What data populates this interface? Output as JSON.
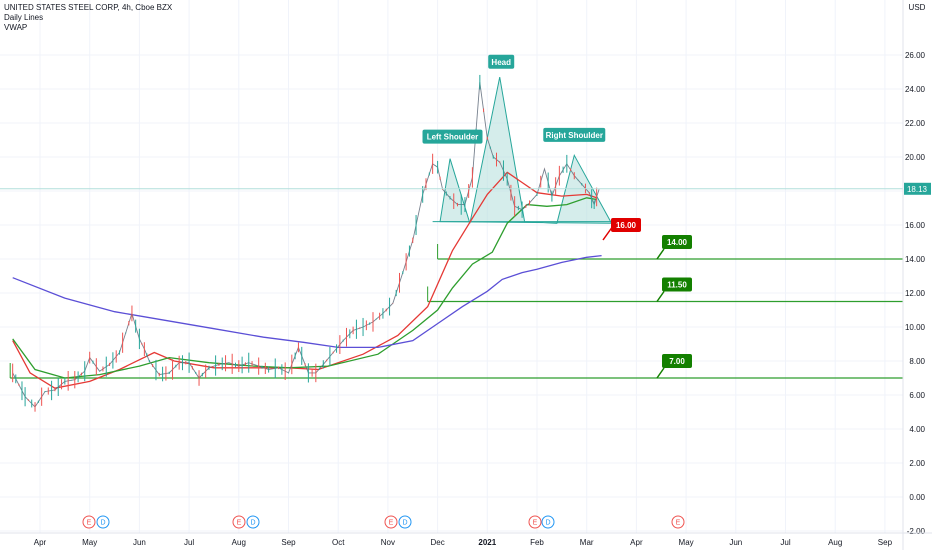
{
  "header": {
    "symbol": "UNITED STATES STEEL CORP, 4h, Cboe BZX",
    "indicator_1": "Daily Lines",
    "indicator_2": "VWAP"
  },
  "currency": "USD",
  "colors": {
    "up": "#26a69a",
    "down": "#ef5350",
    "ma_fast": "#e53935",
    "ma_mid": "#2e9e2e",
    "vwap": "#5b4fd6",
    "pattern_fill": "#b2dfdb",
    "pattern_line": "#26a69a",
    "level_line": "#2e9e2e",
    "label_green": "#138000",
    "label_red": "#e00000",
    "teal_label": "#26a69a"
  },
  "chart_data": {
    "type": "line",
    "title": "UNITED STATES STEEL CORP, 4h, Cboe BZX",
    "x_months": [
      "Apr",
      "May",
      "Jun",
      "Jul",
      "Aug",
      "Sep",
      "Oct",
      "Nov",
      "Dec",
      "2021",
      "Feb",
      "Mar",
      "Apr",
      "May",
      "Jun",
      "Jul",
      "Aug",
      "Sep"
    ],
    "y_ticks": [
      "-2.00",
      "0.00",
      "2.00",
      "4.00",
      "6.00",
      "8.00",
      "10.00",
      "12.00",
      "14.00",
      "16.00",
      "18.00",
      "20.00",
      "22.00",
      "24.00",
      "26.00"
    ],
    "ylim": [
      -2.4,
      27.4
    ],
    "xlim_months": [
      -0.3,
      17.4
    ],
    "current_price": "18.13",
    "price_series": {
      "name": "Price",
      "x": [
        -0.55,
        -0.3,
        -0.1,
        0.1,
        0.3,
        0.5,
        0.7,
        0.9,
        1.0,
        1.2,
        1.4,
        1.6,
        1.85,
        2.0,
        2.1,
        2.2,
        2.4,
        2.6,
        2.8,
        3.0,
        3.2,
        3.4,
        3.6,
        3.8,
        4.0,
        4.2,
        4.4,
        4.6,
        4.8,
        5.0,
        5.2,
        5.4,
        5.55,
        5.7,
        5.9,
        6.1,
        6.3,
        6.5,
        6.7,
        6.9,
        7.1,
        7.3,
        7.5,
        7.7,
        7.9,
        8.0,
        8.1,
        8.25,
        8.4,
        8.55,
        8.7,
        8.85,
        9.0,
        9.12,
        9.25,
        9.4,
        9.55,
        9.7,
        9.85,
        10.0,
        10.15,
        10.3,
        10.45,
        10.6,
        10.75,
        10.9,
        11.05,
        11.15,
        11.25
      ],
      "values": [
        7.3,
        5.9,
        5.3,
        6.2,
        6.3,
        6.8,
        6.9,
        7.4,
        8.2,
        7.4,
        7.8,
        8.5,
        10.8,
        9.3,
        8.7,
        8.0,
        7.2,
        7.3,
        7.9,
        7.9,
        7.0,
        7.6,
        7.8,
        7.9,
        7.7,
        7.9,
        7.7,
        7.5,
        7.6,
        7.3,
        8.8,
        7.3,
        7.3,
        7.8,
        8.5,
        9.2,
        9.8,
        10.0,
        10.3,
        10.8,
        11.4,
        13.2,
        15.1,
        17.8,
        19.6,
        19.4,
        18.1,
        17.6,
        17.2,
        17.2,
        18.8,
        24.4,
        21.1,
        20.0,
        19.7,
        18.7,
        17.1,
        16.9,
        17.3,
        17.8,
        19.3,
        17.7,
        18.9,
        19.6,
        18.9,
        18.4,
        17.9,
        17.2,
        18.1
      ]
    },
    "series": [
      {
        "values": [
          [
            -0.55,
            9.2
          ],
          [
            -0.2,
            7.3
          ],
          [
            0.3,
            6.4
          ],
          [
            1.0,
            6.8
          ],
          [
            1.6,
            7.5
          ],
          [
            2.3,
            8.5
          ],
          [
            2.7,
            8.0
          ],
          [
            3.5,
            7.6
          ],
          [
            4.2,
            7.6
          ],
          [
            5.0,
            7.6
          ],
          [
            5.6,
            7.5
          ],
          [
            6.5,
            8.4
          ],
          [
            7.2,
            9.5
          ],
          [
            7.8,
            11.2
          ],
          [
            8.3,
            14.5
          ],
          [
            8.7,
            16.4
          ],
          [
            9.0,
            17.8
          ],
          [
            9.4,
            19.1
          ],
          [
            9.7,
            18.5
          ],
          [
            10.0,
            17.9
          ],
          [
            10.5,
            17.7
          ],
          [
            11.0,
            17.8
          ],
          [
            11.2,
            17.6
          ]
        ]
      },
      {
        "values": [
          [
            -0.55,
            9.3
          ],
          [
            -0.1,
            7.5
          ],
          [
            0.5,
            7.0
          ],
          [
            1.2,
            7.2
          ],
          [
            2.0,
            7.7
          ],
          [
            2.6,
            8.2
          ],
          [
            3.4,
            7.9
          ],
          [
            4.3,
            7.7
          ],
          [
            5.0,
            7.6
          ],
          [
            5.8,
            7.7
          ],
          [
            6.8,
            8.4
          ],
          [
            7.5,
            9.8
          ],
          [
            8.0,
            11.0
          ],
          [
            8.3,
            12.3
          ],
          [
            8.7,
            13.7
          ],
          [
            9.1,
            14.4
          ],
          [
            9.4,
            16.1
          ],
          [
            9.8,
            17.2
          ],
          [
            10.2,
            17.1
          ],
          [
            10.6,
            17.2
          ],
          [
            11.0,
            17.6
          ],
          [
            11.2,
            17.5
          ]
        ]
      },
      {
        "values": [
          [
            -0.55,
            12.9
          ],
          [
            0.5,
            11.7
          ],
          [
            1.5,
            10.9
          ],
          [
            2.5,
            10.4
          ],
          [
            3.5,
            9.9
          ],
          [
            4.5,
            9.4
          ],
          [
            5.3,
            9.1
          ],
          [
            6.0,
            8.8
          ],
          [
            6.8,
            8.8
          ],
          [
            7.5,
            9.2
          ],
          [
            8.0,
            10.2
          ],
          [
            8.5,
            11.2
          ],
          [
            9.0,
            12.1
          ],
          [
            9.3,
            12.8
          ],
          [
            9.7,
            13.2
          ],
          [
            10.0,
            13.4
          ],
          [
            10.5,
            13.8
          ],
          [
            11.0,
            14.1
          ],
          [
            11.3,
            14.2
          ]
        ]
      }
    ],
    "pattern": {
      "points": [
        [
          8.05,
          16.2
        ],
        [
          8.25,
          19.9
        ],
        [
          8.65,
          16.1
        ],
        [
          9.25,
          24.7
        ],
        [
          9.75,
          16.2
        ],
        [
          10.4,
          16.1
        ],
        [
          10.75,
          20.1
        ],
        [
          11.5,
          16.1
        ]
      ],
      "neckline": [
        [
          7.9,
          16.2
        ],
        [
          11.5,
          16.2
        ]
      ],
      "labels": [
        "Left Shoulder",
        "Head",
        "Right Shoulder"
      ]
    },
    "levels": [
      {
        "value": 14.0,
        "label": "14.00"
      },
      {
        "value": 11.5,
        "label": "11.50"
      },
      {
        "value": 7.0,
        "label": "7.00"
      }
    ],
    "target": {
      "value": 16.0,
      "label": "16.00"
    },
    "events": [
      "E",
      "D",
      "E",
      "D",
      "E",
      "D",
      "E",
      "D",
      "E"
    ]
  }
}
